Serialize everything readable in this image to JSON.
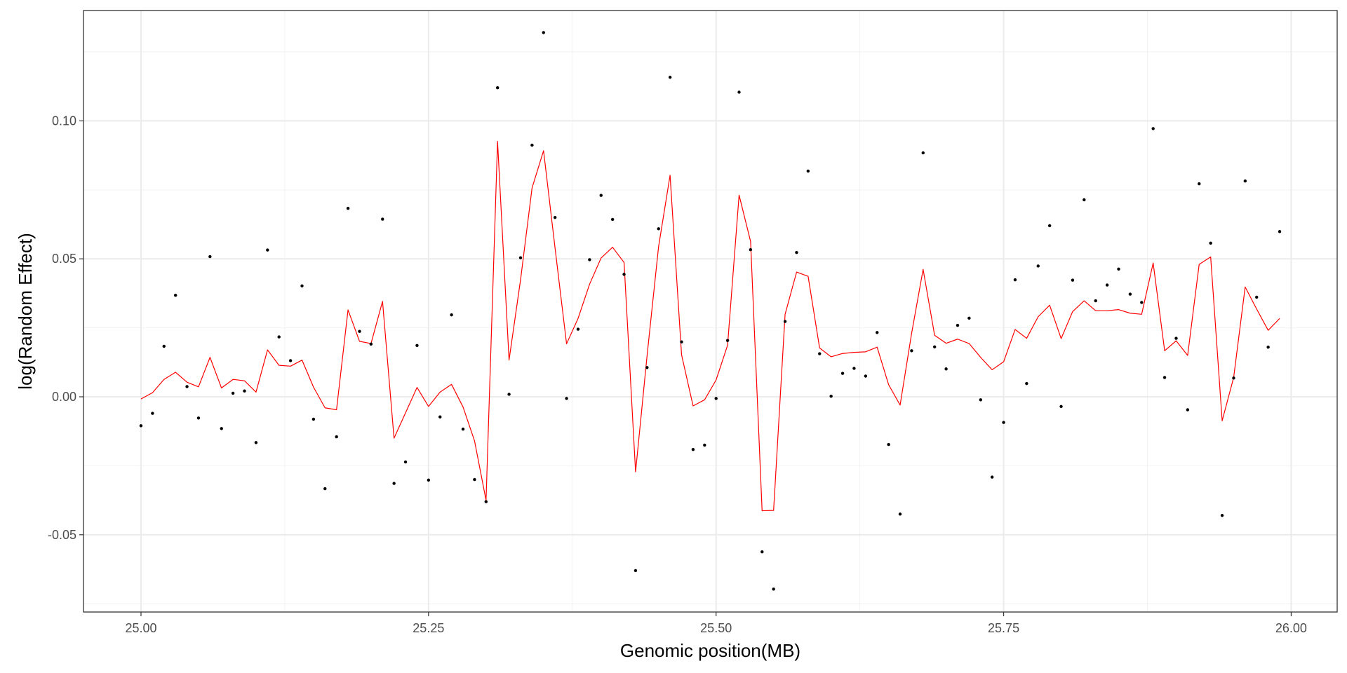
{
  "chart_data": {
    "type": "scatter",
    "title": "",
    "xlabel": "Genomic position(MB)",
    "ylabel": "log(Random Effect)",
    "xlim": [
      24.95,
      26.04
    ],
    "ylim": [
      -0.078,
      0.14
    ],
    "x_ticks": [
      25.0,
      25.25,
      25.5,
      25.75,
      26.0
    ],
    "x_tick_labels": [
      "25.00",
      "25.25",
      "25.50",
      "25.75",
      "26.00"
    ],
    "y_ticks": [
      -0.05,
      0.0,
      0.05,
      0.1
    ],
    "y_tick_labels": [
      "-0.05",
      "0.00",
      "0.05",
      "0.10"
    ],
    "grid": true,
    "colors": {
      "points": "#000000",
      "line": "#ff0000",
      "grid": "#ebebeb",
      "panel_border": "#333333"
    },
    "series": [
      {
        "kind": "points",
        "x": [
          25.0,
          25.01,
          25.02,
          25.03,
          25.04,
          25.05,
          25.06,
          25.07,
          25.08,
          25.09,
          25.1,
          25.11,
          25.12,
          25.13,
          25.14,
          25.15,
          25.16,
          25.17,
          25.18,
          25.19,
          25.2,
          25.21,
          25.22,
          25.23,
          25.24,
          25.25,
          25.26,
          25.27,
          25.28,
          25.29,
          25.3,
          25.31,
          25.32,
          25.33,
          25.34,
          25.35,
          25.36,
          25.37,
          25.38,
          25.39,
          25.4,
          25.41,
          25.42,
          25.43,
          25.44,
          25.45,
          25.46,
          25.47,
          25.48,
          25.49,
          25.5,
          25.51,
          25.52,
          25.53,
          25.54,
          25.55,
          25.56,
          25.57,
          25.58,
          25.59,
          25.6,
          25.61,
          25.62,
          25.63,
          25.64,
          25.65,
          25.66,
          25.67,
          25.68,
          25.69,
          25.7,
          25.71,
          25.72,
          25.73,
          25.74,
          25.75,
          25.76,
          25.77,
          25.78,
          25.79,
          25.8,
          25.81,
          25.82,
          25.83,
          25.84,
          25.85,
          25.86,
          25.87,
          25.88,
          25.89,
          25.9,
          25.91,
          25.92,
          25.93,
          25.94,
          25.95,
          25.96,
          25.97,
          25.98,
          25.99
        ],
        "y": [
          -0.0105,
          -0.006,
          0.0183,
          0.0368,
          0.0037,
          -0.0077,
          0.0508,
          -0.0115,
          0.0013,
          0.0021,
          -0.0166,
          0.0532,
          0.0217,
          0.0131,
          0.0402,
          -0.0081,
          -0.0333,
          -0.0145,
          0.0683,
          0.0237,
          0.0191,
          0.0644,
          -0.0314,
          -0.0236,
          0.0186,
          -0.0302,
          -0.0073,
          0.0297,
          -0.0117,
          -0.03,
          -0.038,
          0.112,
          0.0009,
          0.0504,
          0.0912,
          0.132,
          0.065,
          -0.0006,
          0.0245,
          0.0497,
          0.073,
          0.0643,
          0.0444,
          -0.063,
          0.0106,
          0.0609,
          0.1158,
          0.0199,
          -0.0191,
          -0.0175,
          -0.0006,
          0.0204,
          0.1104,
          0.0533,
          -0.0562,
          -0.0697,
          0.0273,
          0.0523,
          0.0818,
          0.0156,
          0.0002,
          0.0085,
          0.0103,
          0.0075,
          0.0233,
          -0.0173,
          -0.0425,
          0.0167,
          0.0884,
          0.0181,
          0.0101,
          0.0259,
          0.0285,
          -0.0011,
          -0.0291,
          -0.0093,
          0.0424,
          0.0048,
          0.0474,
          0.062,
          -0.0035,
          0.0423,
          0.0714,
          0.0348,
          0.0405,
          0.0463,
          0.0372,
          0.0342,
          0.0972,
          0.007,
          0.0212,
          -0.0047,
          0.0772,
          0.0557,
          -0.043,
          0.0068,
          0.0782,
          0.0361,
          0.018,
          0.0599
        ]
      },
      {
        "kind": "line",
        "x": [
          25.0,
          25.01,
          25.02,
          25.03,
          25.04,
          25.05,
          25.06,
          25.07,
          25.08,
          25.09,
          25.1,
          25.11,
          25.12,
          25.13,
          25.14,
          25.15,
          25.16,
          25.17,
          25.18,
          25.19,
          25.2,
          25.21,
          25.22,
          25.23,
          25.24,
          25.25,
          25.26,
          25.27,
          25.28,
          25.29,
          25.3,
          25.31,
          25.32,
          25.33,
          25.34,
          25.35,
          25.36,
          25.37,
          25.38,
          25.39,
          25.4,
          25.41,
          25.42,
          25.43,
          25.44,
          25.45,
          25.46,
          25.47,
          25.48,
          25.49,
          25.5,
          25.51,
          25.52,
          25.53,
          25.54,
          25.55,
          25.56,
          25.57,
          25.58,
          25.59,
          25.6,
          25.61,
          25.62,
          25.63,
          25.64,
          25.65,
          25.66,
          25.67,
          25.68,
          25.69,
          25.7,
          25.71,
          25.72,
          25.73,
          25.74,
          25.75,
          25.76,
          25.77,
          25.78,
          25.79,
          25.8,
          25.81,
          25.82,
          25.83,
          25.84,
          25.85,
          25.86,
          25.87,
          25.88,
          25.89,
          25.9,
          25.91,
          25.92,
          25.93,
          25.94,
          25.95,
          25.96,
          25.97,
          25.98,
          25.99
        ],
        "y": [
          -0.0008,
          0.0015,
          0.0063,
          0.0089,
          0.0053,
          0.0036,
          0.0143,
          0.0032,
          0.0063,
          0.0058,
          0.0017,
          0.017,
          0.0114,
          0.0111,
          0.0133,
          0.0035,
          -0.004,
          -0.0047,
          0.0315,
          0.0201,
          0.0193,
          0.0346,
          -0.015,
          -0.0058,
          0.0034,
          -0.0035,
          0.0017,
          0.0045,
          -0.0037,
          -0.016,
          -0.0375,
          0.0926,
          0.0133,
          0.0424,
          0.0757,
          0.0892,
          0.0539,
          0.0192,
          0.0284,
          0.0408,
          0.0503,
          0.0542,
          0.0487,
          -0.0272,
          0.0149,
          0.0544,
          0.0803,
          0.0152,
          -0.0033,
          -0.0011,
          0.0061,
          0.0187,
          0.0731,
          0.0563,
          -0.0413,
          -0.0412,
          0.0299,
          0.0452,
          0.0437,
          0.0177,
          0.0145,
          0.0157,
          0.0161,
          0.0163,
          0.018,
          0.0044,
          -0.003,
          0.023,
          0.0462,
          0.0223,
          0.0194,
          0.0209,
          0.0193,
          0.0143,
          0.0098,
          0.0127,
          0.0244,
          0.0212,
          0.029,
          0.0332,
          0.0211,
          0.0309,
          0.0348,
          0.0312,
          0.0312,
          0.0316,
          0.0303,
          0.0299,
          0.0485,
          0.0167,
          0.0203,
          0.015,
          0.048,
          0.0507,
          -0.0087,
          0.007,
          0.0398,
          0.0318,
          0.0241,
          0.0284
        ]
      }
    ]
  }
}
